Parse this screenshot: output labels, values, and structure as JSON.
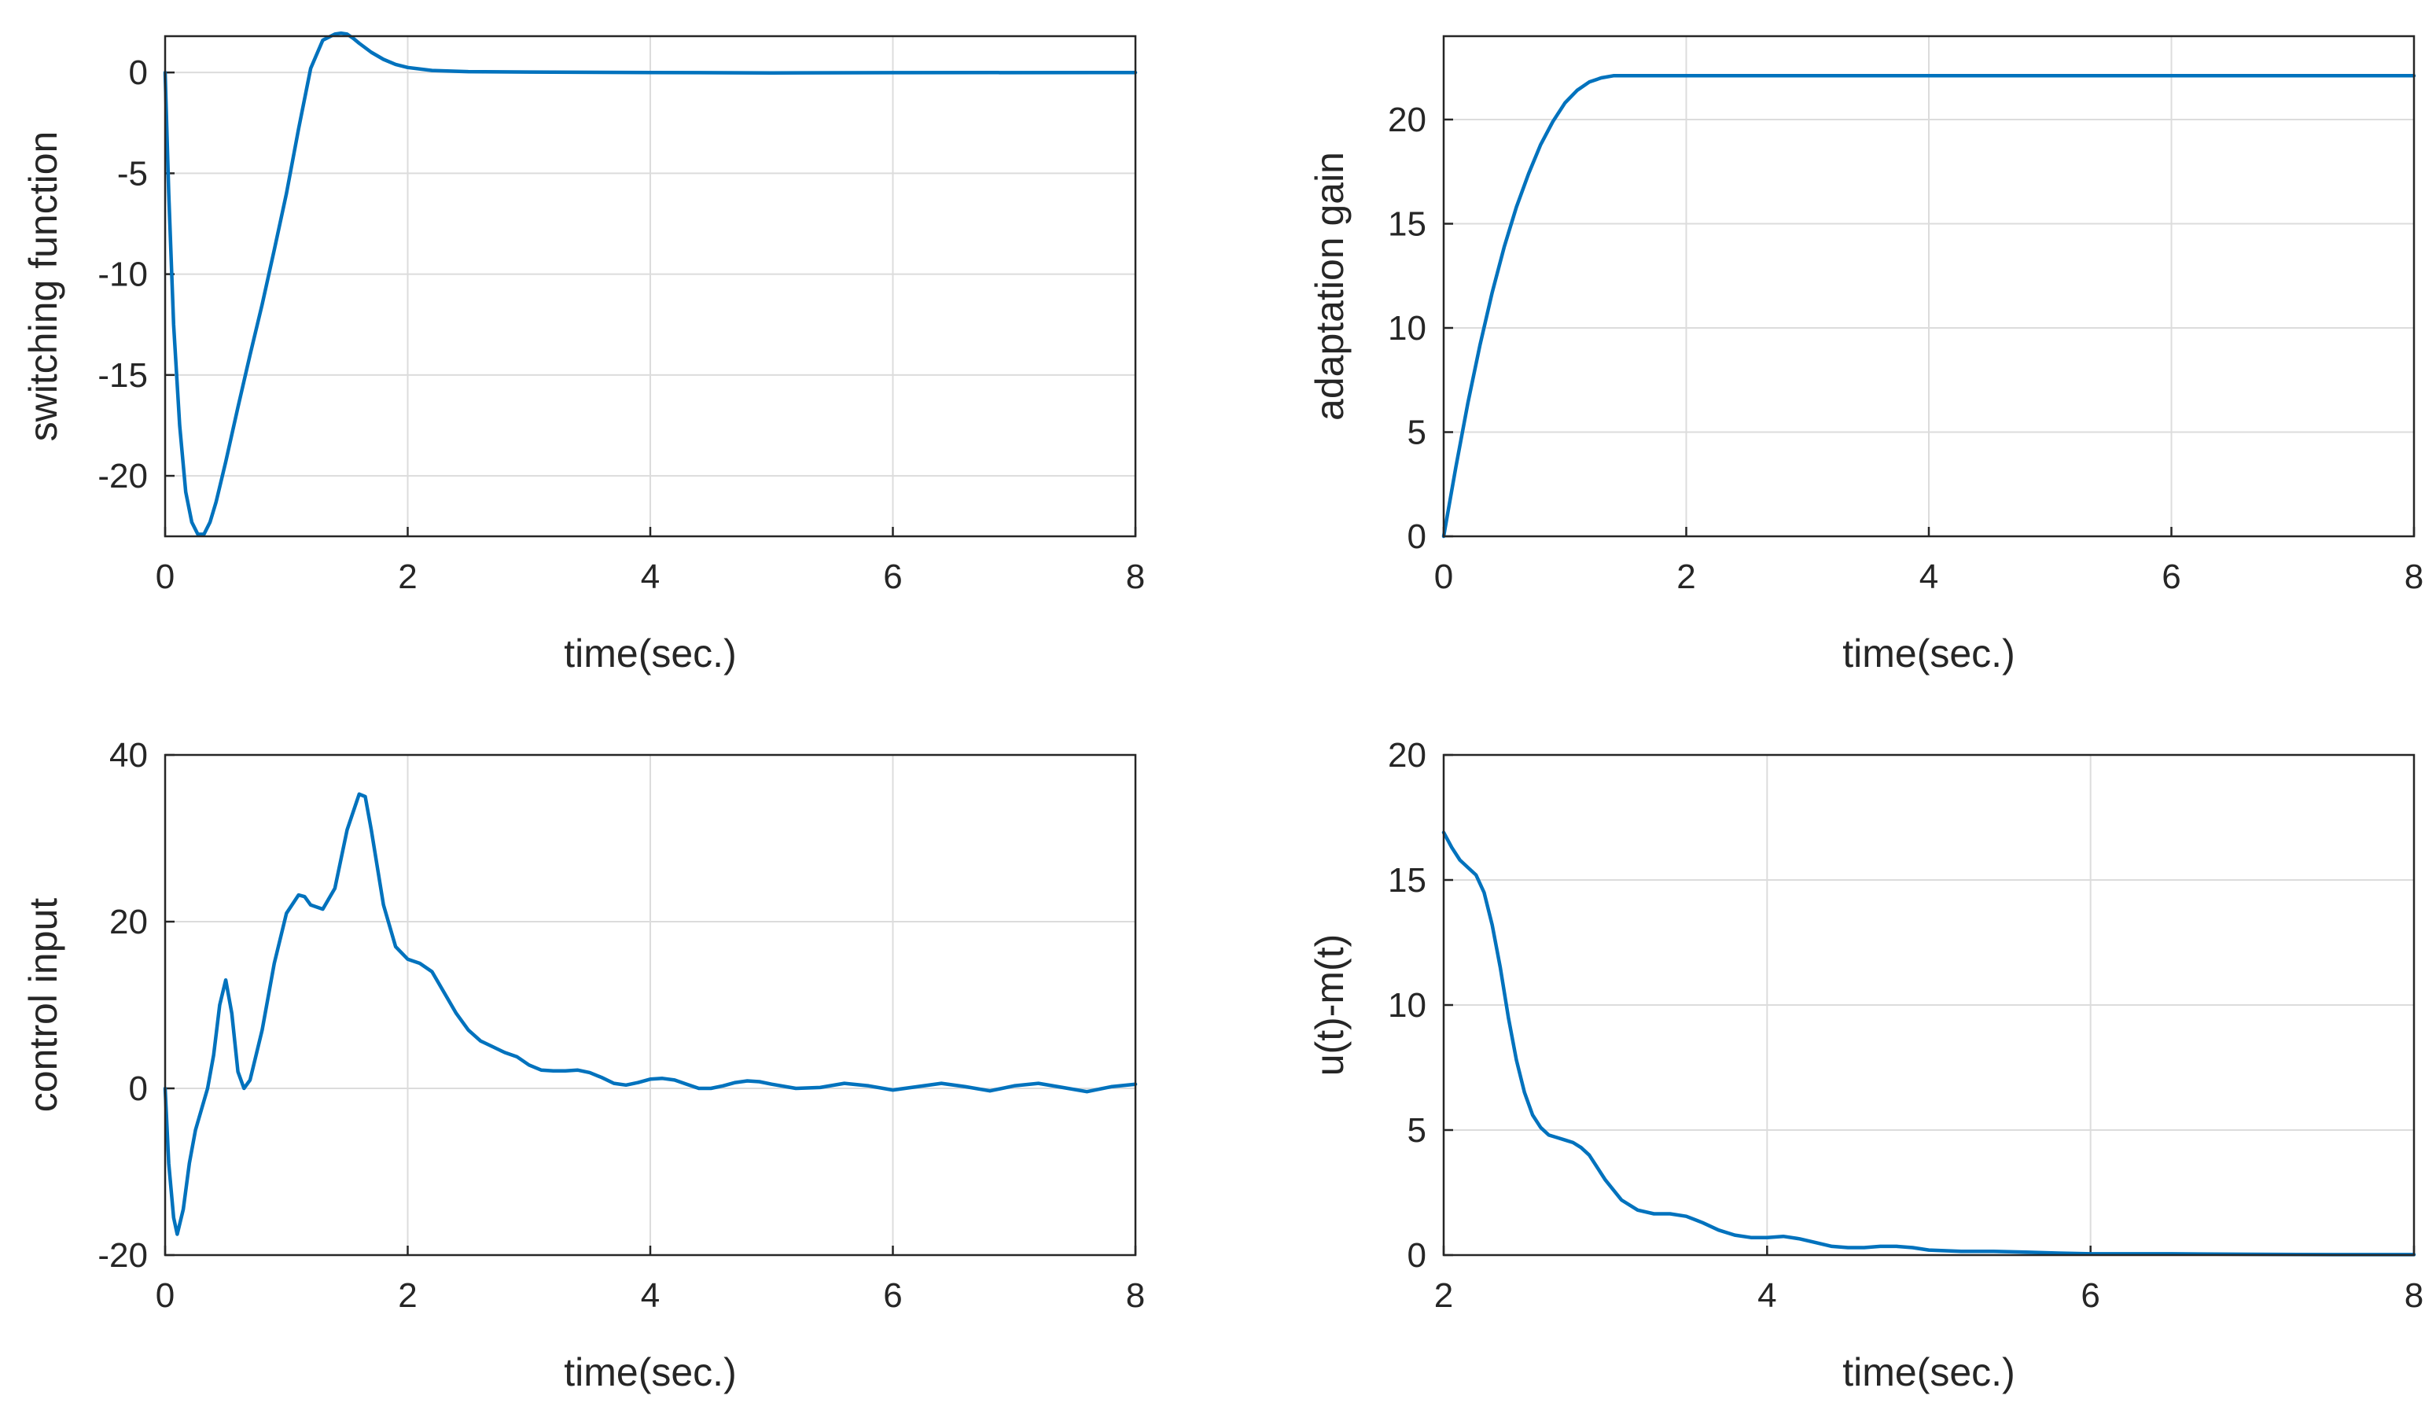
{
  "colors": {
    "line": "#0072BD",
    "axis": "#262626",
    "grid": "#dcdcdc",
    "background": "#ffffff"
  },
  "chart_data": [
    {
      "type": "line",
      "position": "top-left",
      "title": "",
      "xlabel": "time(sec.)",
      "ylabel": "switching function",
      "xlim": [
        0,
        8
      ],
      "ylim": [
        -23,
        1.8
      ],
      "xticks": [
        0,
        2,
        4,
        6,
        8
      ],
      "xtick_labels": [
        "0",
        "2",
        "4",
        "6",
        "8"
      ],
      "yticks": [
        -20,
        -15,
        -10,
        -5,
        0
      ],
      "ytick_labels": [
        "-20",
        "-15",
        "-10",
        "-5",
        "0"
      ],
      "grid": true,
      "series": [
        {
          "name": "switching function",
          "x": [
            0,
            0.03,
            0.07,
            0.12,
            0.17,
            0.22,
            0.27,
            0.32,
            0.37,
            0.42,
            0.5,
            0.6,
            0.7,
            0.8,
            0.9,
            1.0,
            1.1,
            1.2,
            1.3,
            1.4,
            1.45,
            1.5,
            1.55,
            1.6,
            1.7,
            1.8,
            1.9,
            2.0,
            2.2,
            2.5,
            3.0,
            4.0,
            5.0,
            6.0,
            8.0
          ],
          "y": [
            0,
            -6,
            -12.5,
            -17.5,
            -20.8,
            -22.3,
            -22.9,
            -22.9,
            -22.3,
            -21.3,
            -19.3,
            -16.6,
            -14.0,
            -11.5,
            -8.8,
            -6.0,
            -2.8,
            0.2,
            1.6,
            1.9,
            1.95,
            1.9,
            1.7,
            1.45,
            1.0,
            0.65,
            0.4,
            0.25,
            0.1,
            0.04,
            0.02,
            0,
            -0.02,
            -0.01,
            0
          ]
        }
      ]
    },
    {
      "type": "line",
      "position": "top-right",
      "title": "",
      "xlabel": "time(sec.)",
      "ylabel": "adaptation gain",
      "xlim": [
        0,
        8
      ],
      "ylim": [
        0,
        24
      ],
      "xticks": [
        0,
        2,
        4,
        6,
        8
      ],
      "xtick_labels": [
        "0",
        "2",
        "4",
        "6",
        "8"
      ],
      "yticks": [
        0,
        5,
        10,
        15,
        20
      ],
      "ytick_labels": [
        "0",
        "5",
        "10",
        "15",
        "20"
      ],
      "grid": true,
      "series": [
        {
          "name": "adaptation gain",
          "x": [
            0,
            0.1,
            0.2,
            0.3,
            0.4,
            0.5,
            0.6,
            0.7,
            0.8,
            0.9,
            1.0,
            1.1,
            1.2,
            1.3,
            1.4,
            1.5,
            2.0,
            3.0,
            4.0,
            5.0,
            6.0,
            7.0,
            8.0
          ],
          "y": [
            0,
            3.3,
            6.4,
            9.2,
            11.7,
            13.9,
            15.8,
            17.4,
            18.8,
            19.9,
            20.8,
            21.4,
            21.8,
            22.0,
            22.1,
            22.1,
            22.1,
            22.1,
            22.1,
            22.1,
            22.1,
            22.1,
            22.1
          ]
        }
      ]
    },
    {
      "type": "line",
      "position": "bottom-left",
      "title": "",
      "xlabel": "time(sec.)",
      "ylabel": "control input",
      "xlim": [
        0,
        8
      ],
      "ylim": [
        -20,
        40
      ],
      "xticks": [
        0,
        2,
        4,
        6,
        8
      ],
      "xtick_labels": [
        "0",
        "2",
        "4",
        "6",
        "8"
      ],
      "yticks": [
        -20,
        0,
        20,
        40
      ],
      "ytick_labels": [
        "-20",
        "0",
        "20",
        "40"
      ],
      "grid": true,
      "series": [
        {
          "name": "control input",
          "x": [
            0,
            0.03,
            0.07,
            0.1,
            0.15,
            0.2,
            0.25,
            0.3,
            0.35,
            0.4,
            0.45,
            0.5,
            0.55,
            0.6,
            0.65,
            0.7,
            0.8,
            0.9,
            1.0,
            1.1,
            1.15,
            1.2,
            1.3,
            1.4,
            1.5,
            1.6,
            1.65,
            1.7,
            1.8,
            1.9,
            2.0,
            2.1,
            2.2,
            2.3,
            2.4,
            2.5,
            2.6,
            2.7,
            2.8,
            2.9,
            3.0,
            3.1,
            3.2,
            3.3,
            3.4,
            3.5,
            3.6,
            3.7,
            3.8,
            3.9,
            4.0,
            4.1,
            4.2,
            4.3,
            4.4,
            4.5,
            4.6,
            4.7,
            4.8,
            4.9,
            5.0,
            5.2,
            5.4,
            5.6,
            5.8,
            6.0,
            6.2,
            6.4,
            6.6,
            6.8,
            7.0,
            7.2,
            7.4,
            7.6,
            7.8,
            8.0
          ],
          "y": [
            0,
            -9,
            -15.5,
            -17.5,
            -14.5,
            -9,
            -5,
            -2.5,
            0,
            4,
            10,
            13,
            9,
            2,
            0,
            1,
            7,
            15,
            21,
            23.2,
            23,
            22,
            21.5,
            24,
            31,
            35.3,
            35,
            31,
            22,
            17,
            15.5,
            15,
            14,
            11.5,
            9,
            7,
            5.7,
            5,
            4.3,
            3.8,
            2.8,
            2.2,
            2.1,
            2.1,
            2.2,
            1.9,
            1.3,
            0.6,
            0.4,
            0.7,
            1.1,
            1.2,
            1.0,
            0.5,
            0,
            0,
            0.3,
            0.7,
            0.9,
            0.8,
            0.5,
            0,
            0.1,
            0.6,
            0.3,
            -0.2,
            0.2,
            0.6,
            0.2,
            -0.3,
            0.3,
            0.6,
            0.1,
            -0.4,
            0.2,
            0.5
          ]
        }
      ]
    },
    {
      "type": "line",
      "position": "bottom-right",
      "title": "",
      "xlabel": "time(sec.)",
      "ylabel": "u(t)-m(t)",
      "xlim": [
        2,
        8
      ],
      "ylim": [
        0,
        20
      ],
      "xticks": [
        2,
        4,
        6,
        8
      ],
      "xtick_labels": [
        "2",
        "4",
        "6",
        "8"
      ],
      "yticks": [
        0,
        5,
        10,
        15,
        20
      ],
      "ytick_labels": [
        "0",
        "5",
        "10",
        "15",
        "20"
      ],
      "grid": true,
      "series": [
        {
          "name": "u(t)-m(t)",
          "x": [
            2.0,
            2.05,
            2.1,
            2.15,
            2.2,
            2.25,
            2.3,
            2.35,
            2.4,
            2.45,
            2.5,
            2.55,
            2.6,
            2.65,
            2.7,
            2.75,
            2.8,
            2.85,
            2.9,
            2.95,
            3.0,
            3.1,
            3.2,
            3.3,
            3.4,
            3.5,
            3.6,
            3.7,
            3.8,
            3.9,
            4.0,
            4.1,
            4.2,
            4.3,
            4.4,
            4.5,
            4.6,
            4.7,
            4.8,
            4.9,
            5.0,
            5.2,
            5.4,
            5.6,
            5.8,
            6.0,
            6.5,
            7.0,
            7.5,
            8.0
          ],
          "y": [
            16.9,
            16.3,
            15.8,
            15.5,
            15.2,
            14.5,
            13.2,
            11.5,
            9.5,
            7.8,
            6.5,
            5.6,
            5.1,
            4.8,
            4.7,
            4.6,
            4.5,
            4.3,
            4.0,
            3.5,
            3.0,
            2.2,
            1.8,
            1.65,
            1.65,
            1.55,
            1.3,
            1.0,
            0.8,
            0.7,
            0.7,
            0.75,
            0.65,
            0.5,
            0.35,
            0.3,
            0.3,
            0.35,
            0.35,
            0.3,
            0.2,
            0.15,
            0.15,
            0.12,
            0.08,
            0.05,
            0.05,
            0.03,
            0.02,
            0.02
          ]
        }
      ]
    }
  ]
}
